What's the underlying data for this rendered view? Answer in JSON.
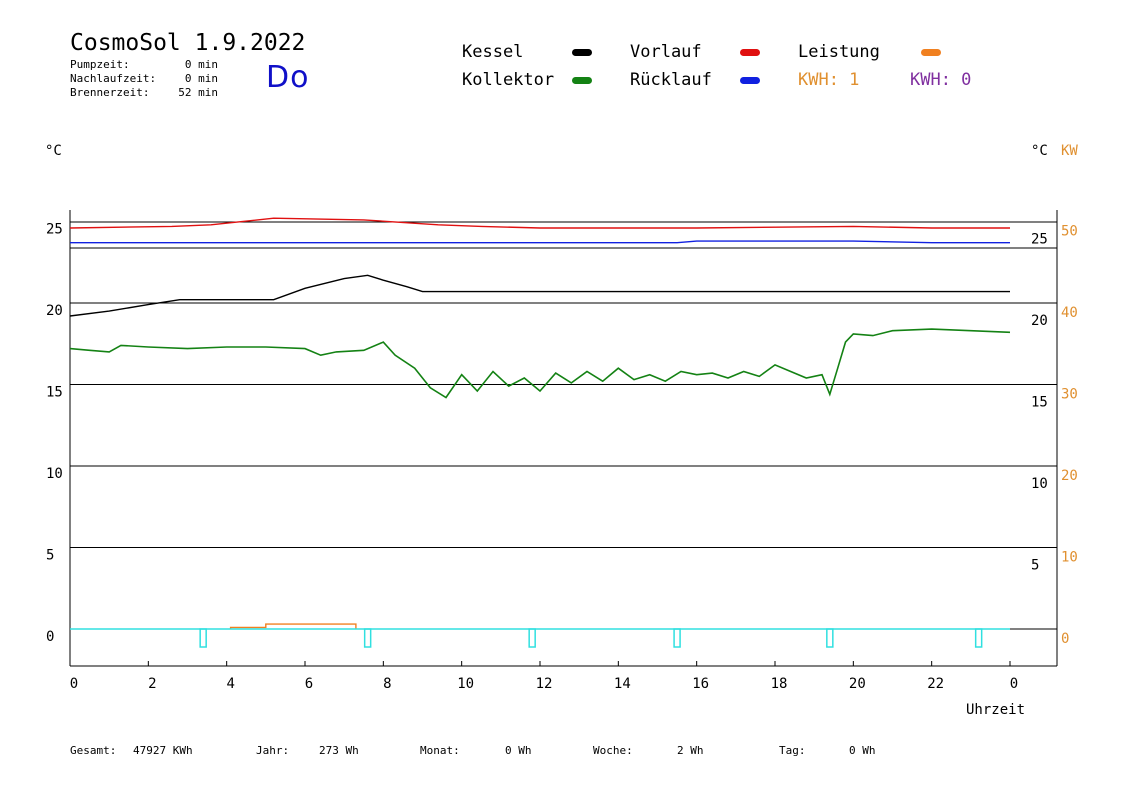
{
  "header": {
    "title": "CosmoSol 1.9.2022",
    "day": "Do",
    "stats": [
      {
        "label": "Pumpzeit:",
        "value": "0 min"
      },
      {
        "label": "Nachlaufzeit:",
        "value": "0 min"
      },
      {
        "label": "Brennerzeit:",
        "value": "52 min"
      }
    ]
  },
  "legend": {
    "kessel": {
      "label": "Kessel",
      "color": "#000000"
    },
    "kollektor": {
      "label": "Kollektor",
      "color": "#148214"
    },
    "vorlauf": {
      "label": "Vorlauf",
      "color": "#e01010"
    },
    "ruecklauf": {
      "label": "Rücklauf",
      "color": "#1020e0"
    },
    "leistung": {
      "label": "Leistung",
      "color": "#f08020"
    },
    "kwh1": {
      "label": "KWH: 1",
      "color": "#e09030"
    },
    "kwh2": {
      "label": "KWH: 0",
      "color": "#8030a0"
    }
  },
  "units": {
    "left": "°C",
    "right_c": "°C",
    "right_kw": "KW"
  },
  "footer": [
    {
      "label": "Gesamt:",
      "value": "47927 KWh"
    },
    {
      "label": "Jahr:",
      "value": "273 Wh"
    },
    {
      "label": "Monat:",
      "value": "0 Wh"
    },
    {
      "label": "Woche:",
      "value": "2 Wh"
    },
    {
      "label": "Tag:",
      "value": "0 Wh"
    }
  ],
  "chart_data": {
    "type": "line",
    "xlabel": "Uhrzeit",
    "x_ticks": [
      "0",
      "2",
      "4",
      "6",
      "8",
      "10",
      "12",
      "14",
      "16",
      "18",
      "20",
      "22",
      "0"
    ],
    "xlim": [
      0,
      24
    ],
    "ylim": [
      -2,
      26
    ],
    "y_ticks_left": [
      "0",
      "5",
      "10",
      "15",
      "20",
      "25"
    ],
    "y_ticks_right_c": [
      "5",
      "10",
      "15",
      "20",
      "25"
    ],
    "y_ticks_right_kw": [
      "0",
      "10",
      "20",
      "30",
      "40",
      "50"
    ],
    "grid": true,
    "series": [
      {
        "name": "Vorlauf",
        "color": "#e01010",
        "x": [
          0,
          2.6,
          3.6,
          5.2,
          7.5,
          9.4,
          10.5,
          12,
          16,
          20,
          22,
          24
        ],
        "y": [
          24.6,
          24.7,
          24.8,
          25.2,
          25.1,
          24.8,
          24.7,
          24.6,
          24.6,
          24.7,
          24.6,
          24.6
        ]
      },
      {
        "name": "Rücklauf",
        "color": "#1020e0",
        "x": [
          0,
          4,
          8,
          12,
          15.5,
          16,
          18,
          20,
          22,
          24
        ],
        "y": [
          23.7,
          23.7,
          23.7,
          23.7,
          23.7,
          23.8,
          23.8,
          23.8,
          23.7,
          23.7
        ]
      },
      {
        "name": "Kessel",
        "color": "#000000",
        "x": [
          0,
          1,
          2,
          2.8,
          5.2,
          6,
          7,
          7.6,
          8,
          8.6,
          9,
          12,
          18,
          24
        ],
        "y": [
          19.2,
          19.5,
          19.9,
          20.2,
          20.2,
          20.9,
          21.5,
          21.7,
          21.4,
          21.0,
          20.7,
          20.7,
          20.7,
          20.7
        ],
        "gaps": [
          [
            2.85,
            5.15
          ]
        ]
      },
      {
        "name": "Kollektor",
        "color": "#148214",
        "x": [
          0,
          0.5,
          1,
          1.3,
          2,
          3,
          4,
          5,
          6,
          6.4,
          6.8,
          7.5,
          8,
          8.3,
          8.8,
          9.2,
          9.6,
          10,
          10.4,
          10.8,
          11.2,
          11.6,
          12,
          12.4,
          12.8,
          13.2,
          13.6,
          14,
          14.4,
          14.8,
          15.2,
          15.6,
          16,
          16.4,
          16.8,
          17.2,
          17.6,
          18,
          18.4,
          18.8,
          19.2,
          19.4,
          19.6,
          19.8,
          20,
          20.5,
          21,
          22,
          23,
          24
        ],
        "y": [
          17.2,
          17.1,
          17.0,
          17.4,
          17.3,
          17.2,
          17.3,
          17.3,
          17.2,
          16.8,
          17.0,
          17.1,
          17.6,
          16.8,
          16.0,
          14.8,
          14.2,
          15.6,
          14.6,
          15.8,
          14.9,
          15.4,
          14.6,
          15.7,
          15.1,
          15.8,
          15.2,
          16.0,
          15.3,
          15.6,
          15.2,
          15.8,
          15.6,
          15.7,
          15.4,
          15.8,
          15.5,
          16.2,
          15.8,
          15.4,
          15.6,
          14.4,
          16.0,
          17.6,
          18.1,
          18.0,
          18.3,
          18.4,
          18.3,
          18.2
        ]
      },
      {
        "name": "Leistung",
        "color": "#f08020",
        "x": [
          4.1,
          4.1,
          5,
          5,
          7.3,
          7.3
        ],
        "y": [
          0,
          0.1,
          0.1,
          0.3,
          0.3,
          0
        ]
      },
      {
        "name": "Pumpe",
        "color": "#30e0e0",
        "pulses": [
          3.4,
          7.6,
          11.8,
          15.5,
          19.4,
          23.2
        ]
      }
    ]
  }
}
